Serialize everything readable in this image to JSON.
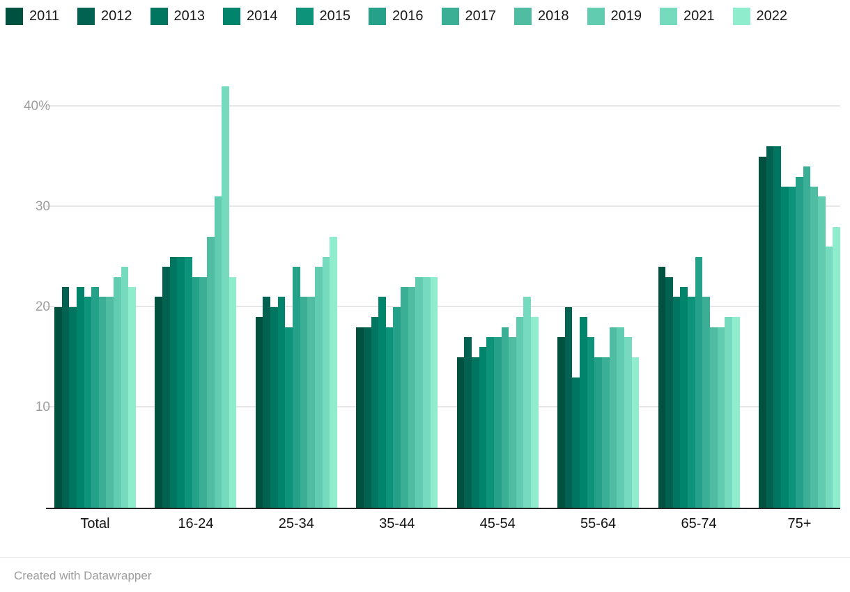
{
  "footer": {
    "credit": "Created with Datawrapper"
  },
  "styles": {
    "background": "#ffffff",
    "axis_text_color": "#9e9e9e",
    "category_text_color": "#141414",
    "legend_text_color": "#191919",
    "gridline_color": "#e7e7e7",
    "baseline_color": "#252525",
    "footer_text_color": "#9c9c9c"
  },
  "chart_data": {
    "type": "bar",
    "grouped": true,
    "title": "",
    "xlabel": "",
    "ylabel": "",
    "unit": "%",
    "ymax": 44,
    "grid": "horizontal",
    "legend_position": "top",
    "categories": [
      "Total",
      "16-24",
      "25-34",
      "35-44",
      "45-54",
      "55-64",
      "65-74",
      "75+"
    ],
    "yticks": [
      {
        "value": 10,
        "label": "10"
      },
      {
        "value": 20,
        "label": "20"
      },
      {
        "value": 30,
        "label": "30"
      },
      {
        "value": 40,
        "label": "40%"
      }
    ],
    "series": [
      {
        "name": "2011",
        "color": "#015141",
        "values": [
          20,
          21,
          19,
          18,
          15,
          17,
          24,
          35
        ]
      },
      {
        "name": "2012",
        "color": "#016251",
        "values": [
          22,
          24,
          21,
          18,
          17,
          20,
          23,
          36
        ]
      },
      {
        "name": "2013",
        "color": "#007560",
        "values": [
          20,
          25,
          20,
          19,
          15,
          13,
          21,
          36
        ]
      },
      {
        "name": "2014",
        "color": "#00846c",
        "values": [
          22,
          25,
          21,
          21,
          16,
          19,
          22,
          32
        ]
      },
      {
        "name": "2015",
        "color": "#0d9379",
        "values": [
          21,
          25,
          18,
          18,
          17,
          17,
          21,
          32
        ]
      },
      {
        "name": "2016",
        "color": "#26a189",
        "values": [
          22,
          23,
          24,
          20,
          17,
          15,
          25,
          33
        ]
      },
      {
        "name": "2017",
        "color": "#3bae96",
        "values": [
          21,
          23,
          21,
          22,
          18,
          15,
          21,
          34
        ]
      },
      {
        "name": "2018",
        "color": "#50bda3",
        "values": [
          21,
          27,
          21,
          22,
          17,
          18,
          18,
          32
        ]
      },
      {
        "name": "2019",
        "color": "#62ccb0",
        "values": [
          23,
          31,
          24,
          23,
          19,
          18,
          18,
          31
        ]
      },
      {
        "name": "2021",
        "color": "#76dabe",
        "values": [
          24,
          42,
          25,
          23,
          21,
          17,
          19,
          26
        ]
      },
      {
        "name": "2022",
        "color": "#8feccc",
        "values": [
          22,
          23,
          27,
          23,
          19,
          15,
          19,
          28
        ]
      }
    ]
  }
}
